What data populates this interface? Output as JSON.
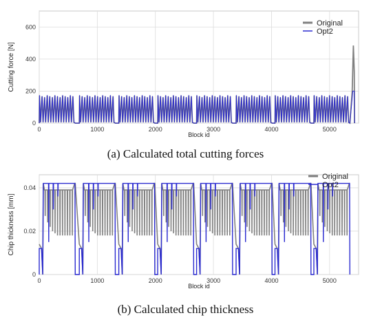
{
  "chart_data": [
    {
      "type": "line",
      "caption": "(a) Calculated total cutting forces",
      "xlabel": "Block id",
      "ylabel": "Cutting force [N]",
      "xlim": [
        0,
        5500
      ],
      "ylim": [
        0,
        700
      ],
      "x_ticks": [
        "0",
        "1000",
        "2000",
        "3000",
        "4000",
        "5000"
      ],
      "y_ticks": [
        "0",
        "200",
        "400",
        "600"
      ],
      "grid": true,
      "legend_position": "top-right",
      "series": [
        {
          "name": "Original",
          "color": "#808080"
        },
        {
          "name": "Opt2",
          "color": "#2a2ad0"
        }
      ],
      "sections_start": [
        0,
        690,
        1370,
        2040,
        2710,
        3390,
        4060,
        4730
      ],
      "section_length": 620,
      "oscillation_low": 0,
      "oscillation_high": 175,
      "oscillations_per_section": 14,
      "final_peak": {
        "x": 5410,
        "original": 485,
        "opt2": 200
      }
    },
    {
      "type": "line",
      "caption": "(b) Calculated chip thickness",
      "xlabel": "Block id",
      "ylabel": "Chip thickness [mm]",
      "xlim": [
        0,
        5500
      ],
      "ylim": [
        0,
        0.046
      ],
      "x_ticks": [
        "0",
        "1000",
        "2000",
        "3000",
        "4000",
        "5000"
      ],
      "y_ticks": [
        "0",
        "0.02",
        "0.04"
      ],
      "grid": true,
      "legend_position": "top-right",
      "series": [
        {
          "name": "Original",
          "color": "#808080"
        },
        {
          "name": "Opt2",
          "color": "#2a2ad0"
        }
      ],
      "sections_start": [
        0,
        690,
        1370,
        2040,
        2710,
        3390,
        4060,
        4730
      ],
      "section_length": 620,
      "max_thickness": 0.042,
      "original_plateau": 0.039,
      "original_dips": [
        0.027,
        0.024,
        0.022,
        0.02,
        0.019,
        0.018,
        0.018,
        0.018,
        0.018,
        0.018,
        0.018,
        0.018
      ],
      "opt2_dips": [
        0.015,
        0.03,
        0.036
      ]
    }
  ]
}
